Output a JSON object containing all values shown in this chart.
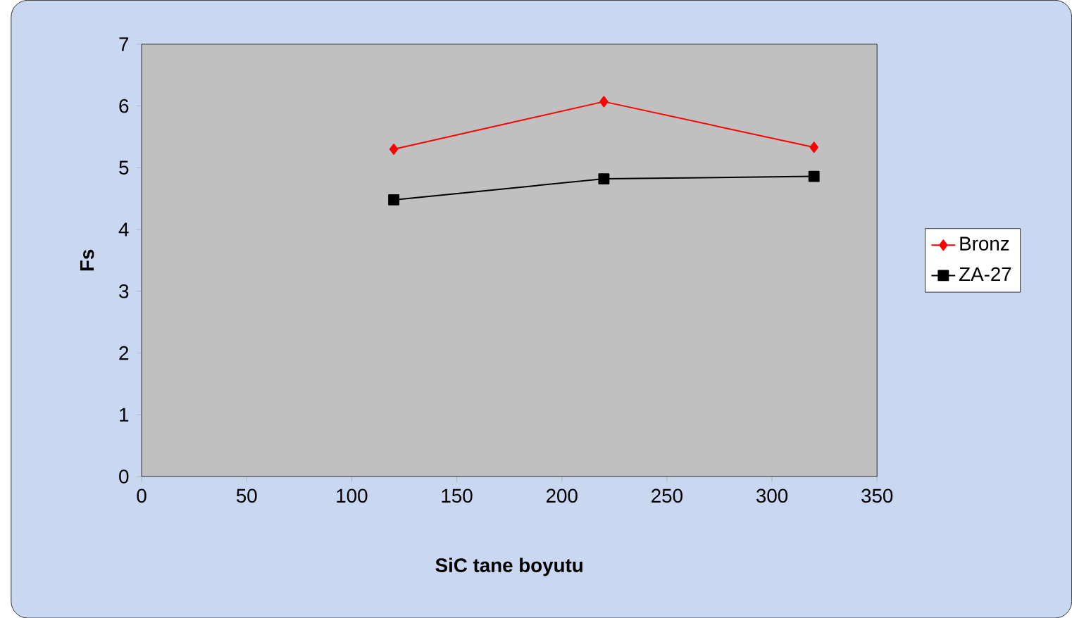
{
  "chart_data": {
    "type": "line",
    "xlabel": "SiC tane boyutu",
    "ylabel": "Fs",
    "x": [
      120,
      220,
      320
    ],
    "series": [
      {
        "name": "Bronz",
        "color": "#ff0000",
        "marker": "diamond",
        "values": [
          5.3,
          6.07,
          5.33
        ]
      },
      {
        "name": "ZA-27",
        "color": "#000000",
        "marker": "square",
        "values": [
          4.48,
          4.82,
          4.86
        ]
      }
    ],
    "xlim": [
      0,
      350
    ],
    "xticks": [
      0,
      50,
      100,
      150,
      200,
      250,
      300,
      350
    ],
    "ylim": [
      0,
      7
    ],
    "yticks": [
      0,
      1,
      2,
      3,
      4,
      5,
      6,
      7
    ],
    "legend": "right"
  }
}
